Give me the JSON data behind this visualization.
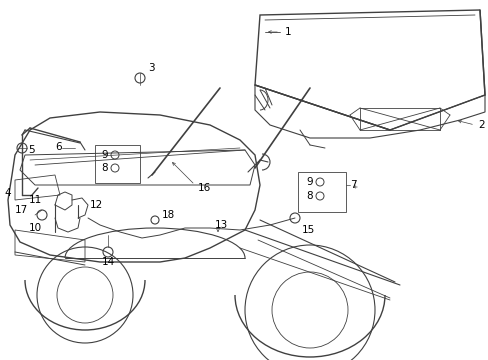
{
  "bg_color": "#ffffff",
  "line_color": "#404040",
  "text_color": "#000000",
  "figsize": [
    4.89,
    3.6
  ],
  "dpi": 100,
  "lw": 0.7
}
